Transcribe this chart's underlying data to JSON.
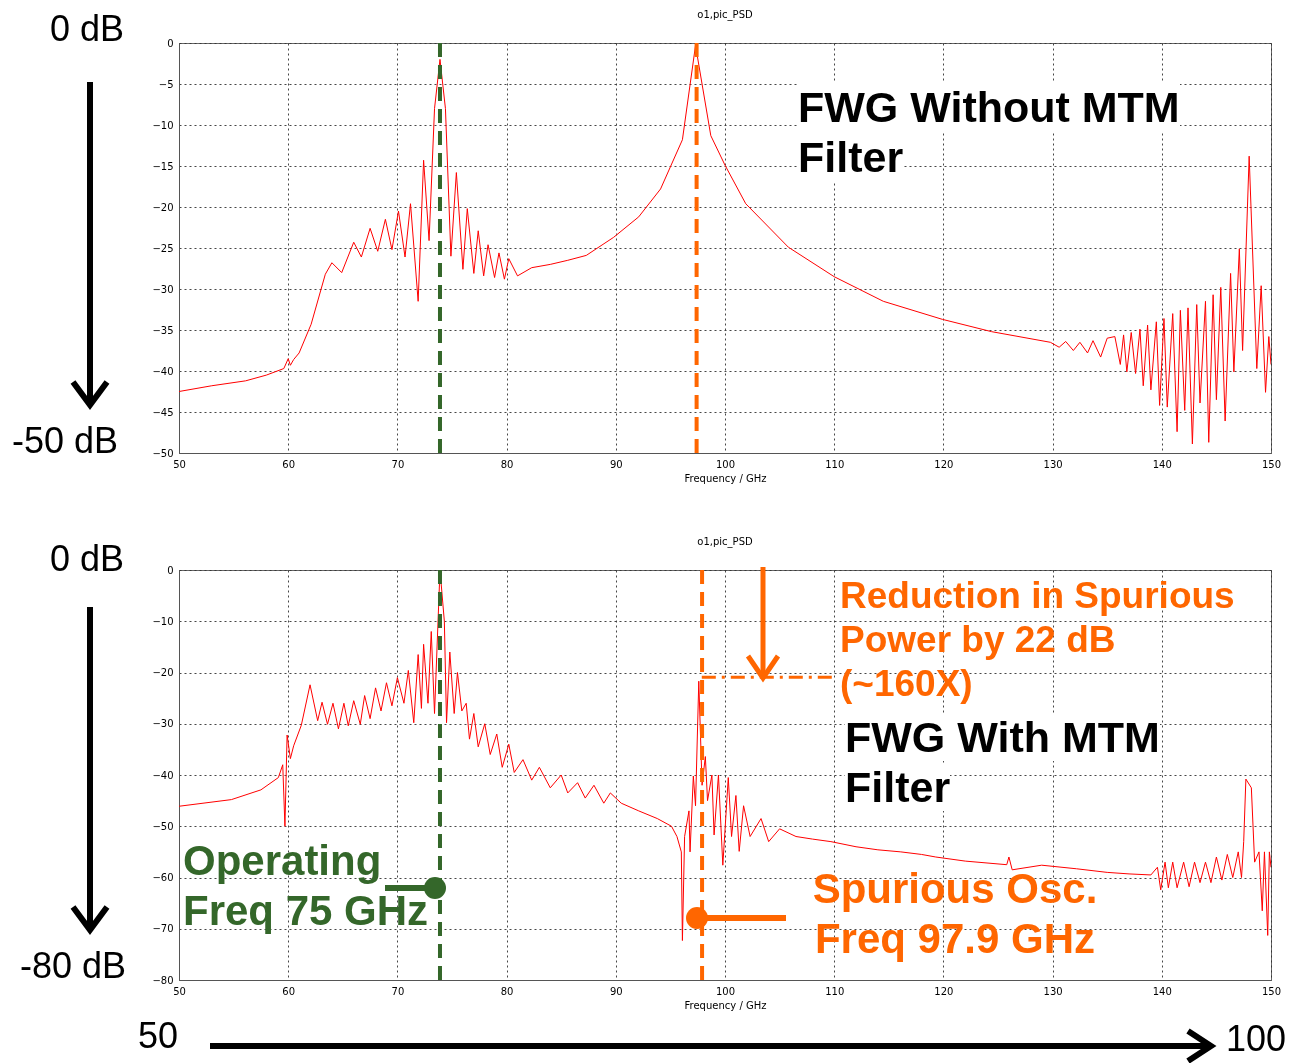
{
  "chart_data": [
    {
      "type": "line",
      "title": "o1,pic_PSD",
      "xlabel": "Frequency / GHz",
      "xlim": [
        50,
        150
      ],
      "xticks": [
        50,
        60,
        70,
        80,
        90,
        100,
        110,
        120,
        130,
        140,
        150
      ],
      "ylim": [
        -50,
        0
      ],
      "yticks": [
        0,
        -5,
        -10,
        -15,
        -20,
        -25,
        -30,
        -35,
        -40,
        -45,
        -50
      ],
      "grid": true,
      "series": [
        {
          "color": "#ff0000",
          "x": [
            50,
            53,
            56.1,
            58,
            59.6,
            60.0,
            60.2,
            60.5,
            61.0,
            62.1,
            63.4,
            64.0,
            64.9,
            66.0,
            66.7,
            67.5,
            68.2,
            68.9,
            69.5,
            70.1,
            70.7,
            71.2,
            71.9,
            72.4,
            72.9,
            73.4,
            73.9,
            74.4,
            74.9,
            75.4,
            76.0,
            76.4,
            77.0,
            77.4,
            77.9,
            78.3,
            78.9,
            79.3,
            79.8,
            80.2,
            81.0,
            82.3,
            84,
            85.6,
            87.3,
            89.8,
            92.1,
            94.1,
            96.1,
            97.3,
            98.7,
            100,
            101.9,
            105.8,
            110,
            114.5,
            119.9,
            124.4,
            129.8,
            130.6,
            131.2,
            131.9,
            132.5,
            133.2,
            133.7,
            134.4,
            135.0,
            135.7,
            136.2,
            136.5,
            136.8,
            137.2,
            137.6,
            138.0,
            138.3,
            138.7,
            139.0,
            139.5,
            139.8,
            140.2,
            140.5,
            141.0,
            141.4,
            141.7,
            142.1,
            142.4,
            142.8,
            143.2,
            143.5,
            144.0,
            144.3,
            144.7,
            145.0,
            145.4,
            145.8,
            146.3,
            146.6,
            147.1,
            147.4,
            148.0,
            148.7,
            149.1,
            149.5,
            149.8,
            150.0
          ],
          "values": [
            -42.5,
            -41.8,
            -41.2,
            -40.5,
            -39.7,
            -38.5,
            -39.3,
            -38.6,
            -37.8,
            -34.3,
            -28.2,
            -26.8,
            -28.0,
            -24.3,
            -26.1,
            -22.6,
            -25.4,
            -21.5,
            -25.2,
            -20.5,
            -26.1,
            -19.6,
            -31.5,
            -14.3,
            -24.1,
            -8,
            -2,
            -8,
            -26.0,
            -15.8,
            -27.6,
            -20.2,
            -28.1,
            -22.9,
            -28.4,
            -24.6,
            -28.6,
            -25.6,
            -28.8,
            -26.3,
            -28.4,
            -27.4,
            -27.0,
            -26.5,
            -25.9,
            -23.7,
            -21.2,
            -17.8,
            -11.8,
            -0.3,
            -11.3,
            -14.9,
            -19.6,
            -24.9,
            -28.5,
            -31.5,
            -33.7,
            -35.2,
            -36.5,
            -37.1,
            -36.4,
            -37.5,
            -36.5,
            -37.8,
            -36.3,
            -38.3,
            -36.0,
            -35.8,
            -39.2,
            -35.6,
            -40.1,
            -35.3,
            -40.3,
            -34.9,
            -41.8,
            -34.4,
            -42.3,
            -34.0,
            -44.2,
            -33.6,
            -44.4,
            -33.0,
            -47.4,
            -32.6,
            -44.8,
            -32.3,
            -48.9,
            -31.9,
            -43.9,
            -31.5,
            -48.7,
            -30.7,
            -43.5,
            -29.8,
            -46.1,
            -28.1,
            -40.1,
            -25.1,
            -37.5,
            -13.8,
            -39.7,
            -29.6,
            -42.6,
            -35.8,
            -39.2
          ]
        }
      ],
      "ref_lines": [
        {
          "axis": "x",
          "value": 73.9,
          "color": "#34672a",
          "line_style": "dashed"
        },
        {
          "axis": "x",
          "value": 97.4,
          "color": "#ff6600",
          "line_style": "dashed"
        }
      ],
      "annotations": [
        "0 dB",
        "-50 dB",
        "FWG Without MTM Filter"
      ]
    },
    {
      "type": "line",
      "title": "o1,pic_PSD",
      "xlabel": "Frequency / GHz",
      "xlim": [
        50,
        150
      ],
      "xticks": [
        50,
        60,
        70,
        80,
        90,
        100,
        110,
        120,
        130,
        140,
        150
      ],
      "ylim": [
        -80,
        0
      ],
      "yticks": [
        0,
        -10,
        -20,
        -30,
        -40,
        -50,
        -60,
        -70,
        -80
      ],
      "grid": true,
      "series": [
        {
          "color": "#ff0000",
          "x": [
            50,
            54.8,
            57.5,
            59.1,
            59.5,
            59.7,
            59.9,
            60.2,
            60.5,
            61.2,
            62.0,
            62.7,
            63.1,
            63.6,
            64.1,
            64.6,
            65.1,
            65.5,
            66.0,
            66.6,
            67.0,
            67.5,
            68,
            68.5,
            69,
            69.5,
            70,
            70.6,
            71,
            71.5,
            71.9,
            72.2,
            72.4,
            72.8,
            73.1,
            73.4,
            73.9,
            74.3,
            74.5,
            74.8,
            75.2,
            75.5,
            75.9,
            76.3,
            76.6,
            77.0,
            77.4,
            78,
            78.5,
            79.1,
            79.6,
            80.2,
            80.7,
            81.5,
            82.3,
            83,
            84,
            85,
            85.6,
            86.5,
            87.2,
            88,
            88.9,
            89.5,
            90.5,
            92.1,
            93.8,
            95.1,
            95.6,
            96.0,
            96.1,
            96.3,
            96.7,
            96.8,
            97.1,
            97.3,
            97.6,
            97.9,
            98.2,
            98.4,
            98.8,
            99.0,
            99.4,
            99.8,
            100.3,
            100.6,
            101.0,
            101.3,
            101.7,
            102.3,
            103.3,
            104,
            105,
            106.5,
            108,
            109.7,
            112,
            114,
            116.1,
            118,
            119.3,
            122,
            125.8,
            126,
            126.3,
            129,
            132.2,
            135,
            137,
            139,
            139.6,
            139.9,
            140.3,
            140.6,
            141,
            141.4,
            142,
            142.5,
            143,
            143.5,
            144,
            144.5,
            145,
            145.5,
            146,
            146.5,
            147,
            147.3,
            147.5,
            147.7,
            148.2,
            148.5,
            148.9,
            149.2,
            149.4,
            149.7,
            149.85,
            150
          ],
          "values": [
            -46.1,
            -44.8,
            -42.9,
            -40.5,
            -38,
            -50,
            -32.2,
            -36.8,
            -34.3,
            -30.3,
            -22.4,
            -29.4,
            -25.8,
            -30.1,
            -26,
            -31,
            -26,
            -30.4,
            -25.5,
            -30.1,
            -24.5,
            -29,
            -23,
            -27.5,
            -22,
            -26.5,
            -21,
            -26,
            -19.6,
            -29.8,
            -16.5,
            -27,
            -14.5,
            -26,
            -12.0,
            -28,
            0,
            -10,
            -29.8,
            -16.0,
            -28,
            -20.0,
            -27.5,
            -26,
            -33,
            -28,
            -34.5,
            -30,
            -36,
            -32,
            -38.5,
            -34,
            -39.5,
            -37,
            -41,
            -38.5,
            -42.5,
            -40,
            -43.5,
            -41.5,
            -44.5,
            -42,
            -45.5,
            -43.5,
            -45.5,
            -47,
            -48.5,
            -50,
            -52,
            -55,
            -72.3,
            -52,
            -47,
            -55,
            -40.2,
            -46,
            -21.7,
            -42,
            -36.4,
            -45,
            -40,
            -51.7,
            -40,
            -57.6,
            -40.5,
            -52,
            -44,
            -54.9,
            -46,
            -52,
            -48.5,
            -53,
            -50.5,
            -52,
            -52.5,
            -53,
            -54,
            -54.6,
            -55,
            -55.5,
            -56,
            -56.8,
            -57.5,
            -56,
            -58.5,
            -57.6,
            -58.3,
            -59,
            -59.3,
            -59.5,
            -58.0,
            -62.4,
            -57,
            -62,
            -57,
            -62,
            -57,
            -61.8,
            -57,
            -61,
            -57,
            -61,
            -56,
            -60.5,
            -55.5,
            -60,
            -55,
            -60,
            -53,
            -40.8,
            -42.5,
            -57,
            -55,
            -66.5,
            -55,
            -71.3,
            -55,
            -58
          ]
        }
      ],
      "ref_lines": [
        {
          "axis": "x",
          "value": 73.9,
          "color": "#34672a",
          "line_style": "dashed"
        },
        {
          "axis": "x",
          "value": 97.9,
          "color": "#ff6600",
          "line_style": "dashed"
        }
      ],
      "annotations": [
        "0 dB",
        "-80 dB",
        {
          "text": "Reduction in Spurious Power by 22 dB (~160X)",
          "x": 97.6,
          "y": -21.7
        },
        "FWG With MTM Filter",
        "Operating Freq 75 GHz",
        "Spurious Osc. Freq 97.9 GHz",
        "50",
        "100"
      ]
    }
  ]
}
